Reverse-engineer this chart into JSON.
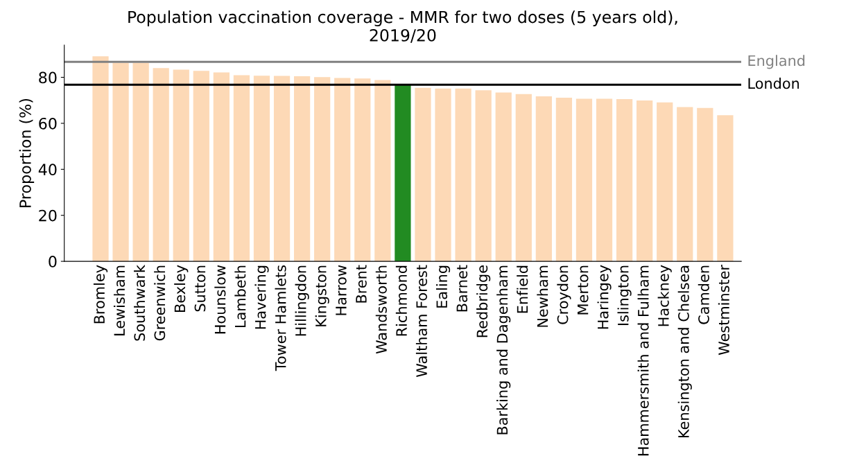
{
  "chart_data": {
    "type": "bar",
    "title": "Population vaccination coverage - MMR for two doses (5 years old),\n2019/20",
    "ylabel": "Proportion (%)",
    "categories": [
      "Bromley",
      "Lewisham",
      "Southwark",
      "Greenwich",
      "Bexley",
      "Sutton",
      "Hounslow",
      "Lambeth",
      "Havering",
      "Tower Hamlets",
      "Hillingdon",
      "Kingston",
      "Harrow",
      "Brent",
      "Wandsworth",
      "Richmond",
      "Waltham Forest",
      "Ealing",
      "Barnet",
      "Redbridge",
      "Barking and Dagenham",
      "Enfield",
      "Newham",
      "Croydon",
      "Merton",
      "Haringey",
      "Islington",
      "Hammersmith and Fulham",
      "Hackney",
      "Kensington and Chelsea",
      "Camden",
      "Westminster"
    ],
    "values": [
      89.1,
      86.3,
      86.3,
      84.0,
      83.3,
      82.8,
      82.1,
      80.9,
      80.7,
      80.6,
      80.5,
      80.1,
      79.7,
      79.5,
      78.8,
      77.0,
      75.4,
      75.1,
      75.1,
      74.4,
      73.4,
      72.7,
      71.7,
      71.1,
      70.7,
      70.7,
      70.5,
      69.9,
      69.1,
      67.1,
      66.7,
      63.5
    ],
    "colors": [
      "#fdd9b6",
      "#fdd9b6",
      "#fdd9b6",
      "#fdd9b6",
      "#fdd9b6",
      "#fdd9b6",
      "#fdd9b6",
      "#fdd9b6",
      "#fdd9b6",
      "#fdd9b6",
      "#fdd9b6",
      "#fdd9b6",
      "#fdd9b6",
      "#fdd9b6",
      "#fdd9b6",
      "#228b22",
      "#fdd9b6",
      "#fdd9b6",
      "#fdd9b6",
      "#fdd9b6",
      "#fdd9b6",
      "#fdd9b6",
      "#fdd9b6",
      "#fdd9b6",
      "#fdd9b6",
      "#fdd9b6",
      "#fdd9b6",
      "#fdd9b6",
      "#fdd9b6",
      "#fdd9b6",
      "#fdd9b6",
      "#fdd9b6"
    ],
    "ylim": [
      0,
      94
    ],
    "yticks": [
      0,
      20,
      40,
      60,
      80
    ],
    "ref_lines": [
      {
        "axis": "y",
        "value": 86.7,
        "label": "England",
        "color": "#808080",
        "line_style": "solid"
      },
      {
        "axis": "y",
        "value": 76.8,
        "label": "London",
        "color": "#000000",
        "line_style": "solid"
      }
    ],
    "grid": false
  }
}
